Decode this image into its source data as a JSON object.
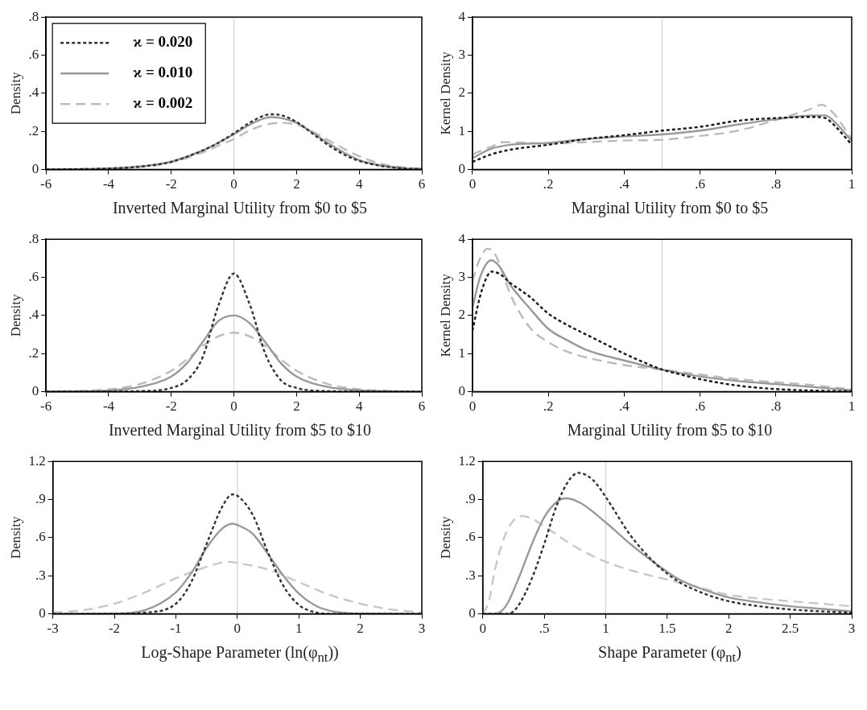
{
  "chart_data": [
    {
      "type": "line",
      "xlabel": "Inverted Marginal Utility from $0 to $5",
      "ylabel": "Density",
      "xlim": [
        -6,
        6
      ],
      "xticks": [
        -6,
        -4,
        -2,
        0,
        2,
        4,
        6
      ],
      "ylim": [
        0,
        0.8
      ],
      "yticks": [
        0,
        {
          "value": 0.2,
          "label": ".2"
        },
        {
          "value": 0.4,
          "label": ".4"
        },
        {
          "value": 0.6,
          "label": ".6"
        },
        {
          "value": 0.8,
          "label": ".8"
        }
      ],
      "legend": "top left",
      "ref_lines": [
        {
          "axis": "x",
          "value": 0,
          "color": "#d9d9d9"
        }
      ],
      "series": [
        {
          "name": "ϰ = 0.020",
          "color": "#333333",
          "line_style": "dotted",
          "x": [
            -6,
            -5,
            -4,
            -3,
            -2,
            -1,
            -0.5,
            0,
            0.5,
            1,
            1.2,
            1.5,
            2,
            2.5,
            3,
            3.5,
            4,
            4.5,
            5,
            5.5,
            6
          ],
          "values": [
            0,
            0.002,
            0.005,
            0.015,
            0.04,
            0.1,
            0.14,
            0.19,
            0.245,
            0.285,
            0.29,
            0.285,
            0.25,
            0.19,
            0.13,
            0.08,
            0.045,
            0.025,
            0.012,
            0.005,
            0.002
          ]
        },
        {
          "name": "ϰ = 0.010",
          "color": "#999999",
          "line_style": "solid",
          "x": [
            -6,
            -5,
            -4,
            -3,
            -2,
            -1,
            -0.5,
            0,
            0.5,
            1,
            1.2,
            1.5,
            2,
            2.5,
            3,
            3.5,
            4,
            4.5,
            5,
            5.5,
            6
          ],
          "values": [
            0,
            0.002,
            0.006,
            0.016,
            0.042,
            0.1,
            0.14,
            0.185,
            0.235,
            0.27,
            0.275,
            0.27,
            0.245,
            0.195,
            0.14,
            0.09,
            0.05,
            0.028,
            0.014,
            0.006,
            0.003
          ]
        },
        {
          "name": "ϰ = 0.002",
          "color": "#bbbbbb",
          "line_style": "dashed",
          "x": [
            -6,
            -5,
            -4,
            -3,
            -2,
            -1,
            -0.5,
            0,
            0.5,
            1,
            1.5,
            2,
            2.5,
            3,
            3.5,
            4,
            4.5,
            5,
            5.5,
            6
          ],
          "values": [
            0,
            0.002,
            0.005,
            0.014,
            0.038,
            0.09,
            0.125,
            0.16,
            0.205,
            0.235,
            0.245,
            0.235,
            0.2,
            0.155,
            0.11,
            0.07,
            0.04,
            0.02,
            0.01,
            0.004
          ]
        }
      ]
    },
    {
      "type": "line",
      "xlabel": "Marginal Utility from $0 to $5",
      "ylabel": "Kernel Density",
      "xlim": [
        0,
        1
      ],
      "xticks": [
        0,
        {
          "value": 0.2,
          "label": ".2"
        },
        {
          "value": 0.4,
          "label": ".4"
        },
        {
          "value": 0.6,
          "label": ".6"
        },
        {
          "value": 0.8,
          "label": ".8"
        },
        1
      ],
      "ylim": [
        0,
        4
      ],
      "yticks": [
        0,
        1,
        2,
        3,
        4
      ],
      "ref_lines": [
        {
          "axis": "x",
          "value": 0.5,
          "color": "#d9d9d9"
        }
      ],
      "series": [
        {
          "color": "#1a1a1a",
          "line_style": "dotted",
          "x": [
            0,
            0.05,
            0.1,
            0.2,
            0.3,
            0.4,
            0.5,
            0.6,
            0.7,
            0.8,
            0.9,
            0.93,
            0.96,
            1
          ],
          "values": [
            0.2,
            0.4,
            0.52,
            0.65,
            0.8,
            0.9,
            1.02,
            1.12,
            1.28,
            1.35,
            1.38,
            1.35,
            1.1,
            0.65
          ]
        },
        {
          "color": "#999999",
          "line_style": "solid",
          "x": [
            0,
            0.05,
            0.1,
            0.2,
            0.3,
            0.4,
            0.5,
            0.6,
            0.7,
            0.8,
            0.9,
            0.93,
            0.96,
            1
          ],
          "values": [
            0.3,
            0.55,
            0.65,
            0.7,
            0.8,
            0.87,
            0.92,
            1.02,
            1.18,
            1.32,
            1.42,
            1.42,
            1.2,
            0.75
          ]
        },
        {
          "color": "#bbbbbb",
          "line_style": "dashed",
          "x": [
            0,
            0.05,
            0.08,
            0.15,
            0.2,
            0.3,
            0.4,
            0.5,
            0.6,
            0.7,
            0.8,
            0.9,
            0.92,
            0.95,
            1
          ],
          "values": [
            0.4,
            0.6,
            0.72,
            0.7,
            0.68,
            0.72,
            0.76,
            0.78,
            0.88,
            1.02,
            1.3,
            1.62,
            1.7,
            1.5,
            0.8
          ]
        }
      ]
    },
    {
      "type": "line",
      "xlabel": "Inverted Marginal Utility from $5 to $10",
      "ylabel": "Density",
      "xlim": [
        -6,
        6
      ],
      "xticks": [
        -6,
        -4,
        -2,
        0,
        2,
        4,
        6
      ],
      "ylim": [
        0,
        0.8
      ],
      "yticks": [
        0,
        {
          "value": 0.2,
          "label": ".2"
        },
        {
          "value": 0.4,
          "label": ".4"
        },
        {
          "value": 0.6,
          "label": ".6"
        },
        {
          "value": 0.8,
          "label": ".8"
        }
      ],
      "ref_lines": [
        {
          "axis": "x",
          "value": 0,
          "color": "#d9d9d9"
        }
      ],
      "series": [
        {
          "color": "#333333",
          "line_style": "dotted",
          "x": [
            -6,
            -4,
            -3,
            -2,
            -1.5,
            -1,
            -0.5,
            0,
            0.5,
            1,
            1.5,
            2,
            3,
            4,
            6
          ],
          "values": [
            0,
            0.001,
            0.003,
            0.02,
            0.06,
            0.18,
            0.45,
            0.62,
            0.46,
            0.2,
            0.06,
            0.02,
            0.003,
            0.001,
            0
          ]
        },
        {
          "color": "#999999",
          "line_style": "solid",
          "x": [
            -6,
            -5,
            -4,
            -3,
            -2,
            -1.5,
            -1,
            -0.5,
            0,
            0.5,
            1,
            1.5,
            2,
            3,
            4,
            5,
            6
          ],
          "values": [
            0,
            0.002,
            0.006,
            0.025,
            0.08,
            0.15,
            0.26,
            0.37,
            0.4,
            0.36,
            0.26,
            0.15,
            0.08,
            0.025,
            0.007,
            0.002,
            0
          ]
        },
        {
          "color": "#bbbbbb",
          "line_style": "dashed",
          "x": [
            -6,
            -5,
            -4,
            -3,
            -2,
            -1.5,
            -1,
            -0.5,
            0,
            0.5,
            1,
            1.5,
            2,
            3,
            4,
            5
          ],
          "values": [
            0.001,
            0.004,
            0.012,
            0.04,
            0.11,
            0.17,
            0.24,
            0.29,
            0.31,
            0.29,
            0.24,
            0.17,
            0.11,
            0.04,
            0.013,
            0.004
          ]
        }
      ]
    },
    {
      "type": "line",
      "xlabel": "Marginal Utility from $5 to $10",
      "ylabel": "Kernel Density",
      "xlim": [
        0,
        1
      ],
      "xticks": [
        0,
        {
          "value": 0.2,
          "label": ".2"
        },
        {
          "value": 0.4,
          "label": ".4"
        },
        {
          "value": 0.6,
          "label": ".6"
        },
        {
          "value": 0.8,
          "label": ".8"
        },
        1
      ],
      "ylim": [
        0,
        4
      ],
      "yticks": [
        0,
        1,
        2,
        3,
        4
      ],
      "ref_lines": [
        {
          "axis": "x",
          "value": 0.5,
          "color": "#d9d9d9"
        }
      ],
      "series": [
        {
          "color": "#1a1a1a",
          "line_style": "dotted",
          "x": [
            0,
            0.02,
            0.04,
            0.05,
            0.07,
            0.1,
            0.15,
            0.2,
            0.25,
            0.3,
            0.35,
            0.4,
            0.45,
            0.5,
            0.55,
            0.6,
            0.7,
            0.8,
            0.9,
            1
          ],
          "values": [
            1.6,
            2.5,
            3.05,
            3.15,
            3.1,
            2.85,
            2.5,
            2.05,
            1.75,
            1.5,
            1.25,
            1.0,
            0.78,
            0.58,
            0.45,
            0.33,
            0.16,
            0.07,
            0.03,
            0.01
          ]
        },
        {
          "color": "#999999",
          "line_style": "solid",
          "x": [
            0,
            0.02,
            0.05,
            0.07,
            0.1,
            0.15,
            0.2,
            0.25,
            0.3,
            0.4,
            0.5,
            0.6,
            0.7,
            0.8,
            0.9,
            1
          ],
          "values": [
            2.2,
            3.0,
            3.45,
            3.3,
            2.8,
            2.2,
            1.65,
            1.35,
            1.1,
            0.82,
            0.58,
            0.4,
            0.28,
            0.2,
            0.12,
            0.04
          ]
        },
        {
          "color": "#bbbbbb",
          "line_style": "dashed",
          "x": [
            0,
            0.02,
            0.04,
            0.06,
            0.08,
            0.1,
            0.15,
            0.2,
            0.25,
            0.3,
            0.4,
            0.5,
            0.6,
            0.7,
            0.8,
            0.9,
            1
          ],
          "values": [
            2.9,
            3.5,
            3.75,
            3.6,
            3.1,
            2.55,
            1.7,
            1.3,
            1.05,
            0.9,
            0.7,
            0.58,
            0.45,
            0.33,
            0.25,
            0.17,
            0.06
          ]
        }
      ]
    },
    {
      "type": "line",
      "xlabel": "Log-Shape Parameter (ln(φ$_{nt}$))",
      "ylabel": "Density",
      "xlim": [
        -3,
        3
      ],
      "xticks": [
        -3,
        -2,
        -1,
        0,
        1,
        2,
        3
      ],
      "ylim": [
        0,
        1.2
      ],
      "yticks": [
        0,
        {
          "value": 0.3,
          "label": ".3"
        },
        {
          "value": 0.6,
          "label": ".6"
        },
        {
          "value": 0.9,
          "label": ".9"
        },
        1.2
      ],
      "ref_lines": [
        {
          "axis": "x",
          "value": 0,
          "color": "#d9d9d9"
        }
      ],
      "series": [
        {
          "color": "#333333",
          "line_style": "dotted",
          "x": [
            -3,
            -2,
            -1.5,
            -1,
            -0.75,
            -0.5,
            -0.25,
            -0.08,
            0,
            0.25,
            0.5,
            0.75,
            1,
            1.25,
            1.5,
            3
          ],
          "values": [
            0,
            0,
            0.01,
            0.08,
            0.25,
            0.55,
            0.84,
            0.94,
            0.93,
            0.78,
            0.48,
            0.22,
            0.07,
            0.015,
            0,
            0
          ]
        },
        {
          "color": "#999999",
          "line_style": "solid",
          "x": [
            -3,
            -2,
            -1.5,
            -1,
            -0.75,
            -0.5,
            -0.25,
            -0.08,
            0,
            0.25,
            0.5,
            0.75,
            1,
            1.25,
            1.5,
            2,
            3
          ],
          "values": [
            0,
            0.002,
            0.03,
            0.17,
            0.32,
            0.52,
            0.67,
            0.71,
            0.7,
            0.63,
            0.47,
            0.3,
            0.16,
            0.07,
            0.025,
            0.002,
            0
          ]
        },
        {
          "color": "#c8c8c8",
          "line_style": "dashed",
          "x": [
            -3,
            -2.5,
            -2,
            -1.5,
            -1,
            -0.5,
            -0.15,
            0,
            0.5,
            1,
            1.5,
            2,
            2.5,
            3
          ],
          "values": [
            0.01,
            0.03,
            0.08,
            0.17,
            0.28,
            0.37,
            0.41,
            0.4,
            0.35,
            0.25,
            0.15,
            0.08,
            0.035,
            0.012
          ]
        }
      ]
    },
    {
      "type": "line",
      "xlabel": "Shape Parameter (φ$_{nt}$)",
      "ylabel": "Density",
      "xlim": [
        0,
        3
      ],
      "xticks": [
        0,
        {
          "value": 0.5,
          "label": ".5"
        },
        1,
        1.5,
        2,
        2.5,
        3
      ],
      "ylim": [
        0,
        1.2
      ],
      "yticks": [
        0,
        {
          "value": 0.3,
          "label": ".3"
        },
        {
          "value": 0.6,
          "label": ".6"
        },
        {
          "value": 0.9,
          "label": ".9"
        },
        1.2
      ],
      "ref_lines": [
        {
          "axis": "x",
          "value": 1,
          "color": "#d9d9d9"
        }
      ],
      "series": [
        {
          "color": "#333333",
          "line_style": "dotted",
          "x": [
            0,
            0.2,
            0.25,
            0.3,
            0.4,
            0.5,
            0.6,
            0.7,
            0.78,
            0.9,
            1,
            1.2,
            1.4,
            1.6,
            1.8,
            2,
            2.25,
            2.5,
            2.75,
            3
          ],
          "values": [
            0,
            0,
            0.02,
            0.08,
            0.28,
            0.55,
            0.85,
            1.05,
            1.11,
            1.05,
            0.92,
            0.62,
            0.4,
            0.25,
            0.16,
            0.1,
            0.06,
            0.035,
            0.02,
            0.01
          ]
        },
        {
          "color": "#999999",
          "line_style": "solid",
          "x": [
            0,
            0.1,
            0.15,
            0.2,
            0.3,
            0.4,
            0.5,
            0.6,
            0.68,
            0.8,
            1,
            1.2,
            1.4,
            1.6,
            1.8,
            2,
            2.25,
            2.5,
            2.75,
            3
          ],
          "values": [
            0,
            0,
            0.02,
            0.08,
            0.3,
            0.55,
            0.76,
            0.88,
            0.91,
            0.87,
            0.72,
            0.55,
            0.4,
            0.27,
            0.19,
            0.13,
            0.09,
            0.06,
            0.04,
            0.02
          ]
        },
        {
          "color": "#c8c8c8",
          "line_style": "dashed",
          "x": [
            0,
            0.05,
            0.1,
            0.2,
            0.32,
            0.4,
            0.5,
            0.75,
            1,
            1.25,
            1.5,
            1.75,
            2,
            2.25,
            2.5,
            2.75,
            3
          ],
          "values": [
            0,
            0.1,
            0.35,
            0.66,
            0.77,
            0.75,
            0.69,
            0.53,
            0.41,
            0.33,
            0.27,
            0.21,
            0.15,
            0.12,
            0.1,
            0.08,
            0.06
          ]
        }
      ]
    }
  ]
}
